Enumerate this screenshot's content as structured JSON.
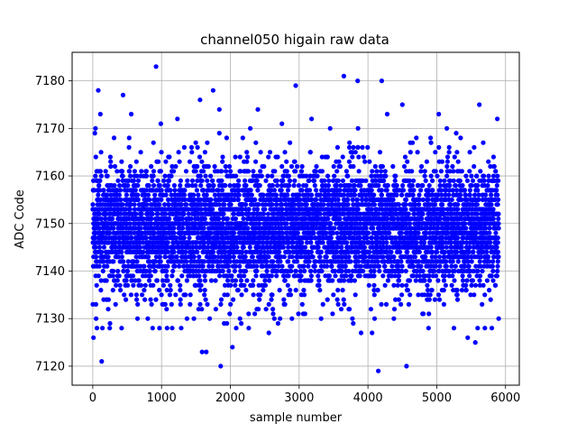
{
  "chart_data": {
    "type": "scatter",
    "title": "channel050 higain raw data",
    "xlabel": "sample number",
    "ylabel": "ADC Code",
    "xlim": [
      -300,
      6200
    ],
    "ylim": [
      7116,
      7186
    ],
    "xticks": [
      0,
      1000,
      2000,
      3000,
      4000,
      5000,
      6000
    ],
    "yticks": [
      7120,
      7130,
      7140,
      7150,
      7160,
      7170,
      7180
    ],
    "grid": true,
    "marker_color": "#0000ff",
    "series": [
      {
        "n_points": 5900,
        "x_range": [
          0,
          5900
        ],
        "center": 7149,
        "spread_sd": 6.5,
        "outliers": [
          [
            10,
            7126
          ],
          [
            30,
            7169
          ],
          [
            40,
            7170
          ],
          [
            60,
            7128
          ],
          [
            80,
            7178
          ],
          [
            110,
            7173
          ],
          [
            130,
            7121
          ],
          [
            140,
            7128
          ],
          [
            250,
            7129
          ],
          [
            310,
            7168
          ],
          [
            420,
            7128
          ],
          [
            440,
            7177
          ],
          [
            560,
            7173
          ],
          [
            650,
            7130
          ],
          [
            800,
            7130
          ],
          [
            920,
            7183
          ],
          [
            990,
            7171
          ],
          [
            870,
            7128
          ],
          [
            970,
            7128
          ],
          [
            1080,
            7128
          ],
          [
            1230,
            7172
          ],
          [
            1370,
            7130
          ],
          [
            1470,
            7130
          ],
          [
            1560,
            7176
          ],
          [
            1590,
            7123
          ],
          [
            1650,
            7123
          ],
          [
            1750,
            7178
          ],
          [
            1840,
            7174
          ],
          [
            1860,
            7120
          ],
          [
            1950,
            7129
          ],
          [
            2030,
            7124
          ],
          [
            2140,
            7130
          ],
          [
            2290,
            7170
          ],
          [
            2400,
            7174
          ],
          [
            2560,
            7127
          ],
          [
            2640,
            7130
          ],
          [
            2750,
            7171
          ],
          [
            2950,
            7179
          ],
          [
            3180,
            7172
          ],
          [
            3320,
            7130
          ],
          [
            3450,
            7170
          ],
          [
            3650,
            7181
          ],
          [
            3850,
            7180
          ],
          [
            3900,
            7127
          ],
          [
            4060,
            7127
          ],
          [
            4150,
            7119
          ],
          [
            4200,
            7180
          ],
          [
            4280,
            7173
          ],
          [
            4500,
            7175
          ],
          [
            4560,
            7120
          ],
          [
            4880,
            7128
          ],
          [
            5030,
            7173
          ],
          [
            5250,
            7128
          ],
          [
            5450,
            7126
          ],
          [
            5560,
            7125
          ],
          [
            5620,
            7175
          ],
          [
            5700,
            7128
          ],
          [
            5800,
            7128
          ],
          [
            5900,
            7130
          ],
          [
            5880,
            7172
          ]
        ]
      }
    ]
  }
}
